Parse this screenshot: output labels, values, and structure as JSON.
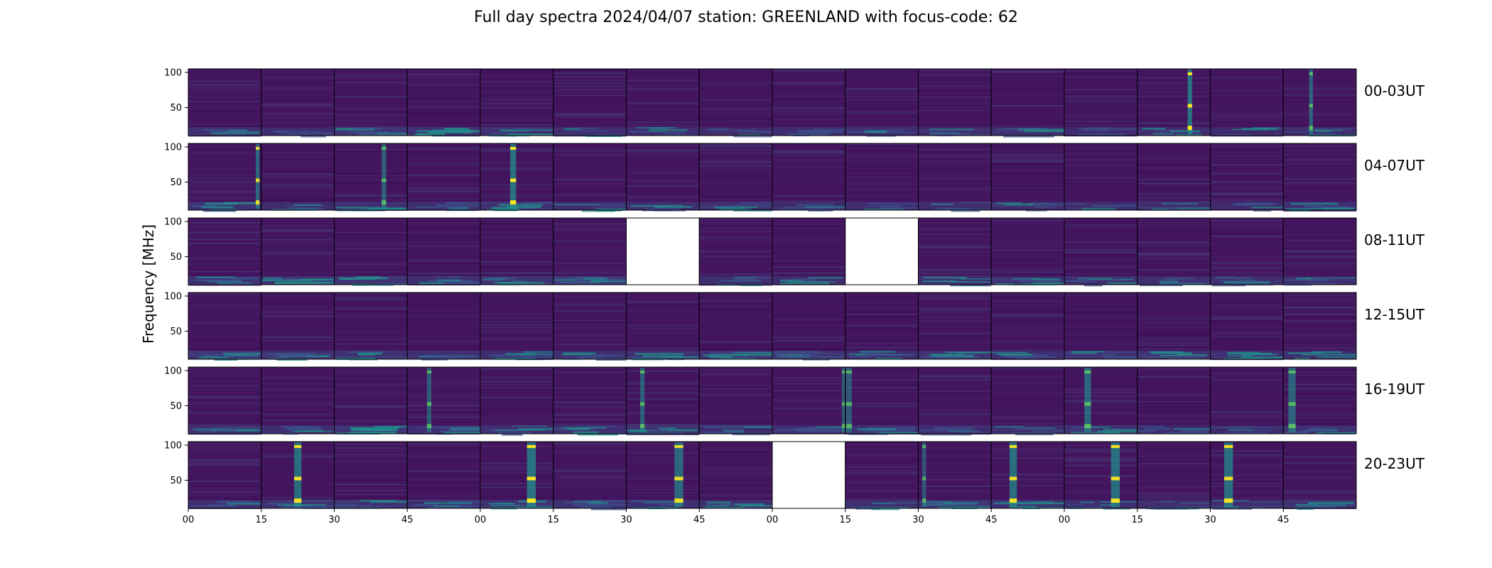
{
  "title": "Full day spectra 2024/04/07 station: GREENLAND with focus-code: 62",
  "colors": {
    "background": "#44155f",
    "low": "#461c64",
    "mid": "#3b528b",
    "teal": "#21918c",
    "green": "#5ec962",
    "yellow": "#fde725"
  },
  "chart_data": {
    "type": "heatmap",
    "title": "Full day spectra 2024/04/07 station: GREENLAND with focus-code: 62",
    "ylabel": "Frequency [MHz]",
    "xlabel": "",
    "ylim": [
      10,
      105
    ],
    "y_ticks": [
      50,
      100
    ],
    "y_tick_labels": [
      "50",
      "100"
    ],
    "x_tick_labels": [
      "00",
      "15",
      "30",
      "45",
      "00",
      "15",
      "30",
      "45",
      "00",
      "15",
      "30",
      "45",
      "00",
      "15",
      "30",
      "45"
    ],
    "panels_per_row": 16,
    "panel_minutes": 15,
    "rows": [
      {
        "label": "00-03UT",
        "missing": [],
        "bursts": [
          {
            "panel": 13,
            "x": 0.72,
            "width": 0.06,
            "strength": 1.0
          },
          {
            "panel": 15,
            "x": 0.38,
            "width": 0.05,
            "strength": 0.7
          }
        ],
        "lowband": [
          0.5,
          0.35,
          0.65,
          0.6,
          0.45,
          0.3,
          0.35,
          0.25,
          0.35,
          0.3,
          0.25,
          0.4,
          0.3,
          0.35,
          0.3,
          0.3
        ]
      },
      {
        "label": "04-07UT",
        "missing": [],
        "bursts": [
          {
            "panel": 0,
            "x": 0.95,
            "width": 0.05,
            "strength": 0.8
          },
          {
            "panel": 2,
            "x": 0.68,
            "width": 0.06,
            "strength": 0.65
          },
          {
            "panel": 4,
            "x": 0.45,
            "width": 0.08,
            "strength": 1.0
          }
        ],
        "lowband": [
          0.55,
          0.35,
          0.5,
          0.4,
          0.5,
          0.35,
          0.35,
          0.4,
          0.3,
          0.35,
          0.3,
          0.3,
          0.25,
          0.3,
          0.25,
          0.45
        ]
      },
      {
        "label": "08-11UT",
        "missing": [
          6,
          9
        ],
        "bursts": [],
        "lowband": [
          0.6,
          0.65,
          0.55,
          0.45,
          0.6,
          0.7,
          0.0,
          0.45,
          0.35,
          0.0,
          0.4,
          0.45,
          0.4,
          0.4,
          0.4,
          0.35
        ]
      },
      {
        "label": "12-15UT",
        "missing": [],
        "bursts": [],
        "lowband": [
          0.7,
          0.55,
          0.5,
          0.45,
          0.5,
          0.4,
          0.45,
          0.5,
          0.55,
          0.45,
          0.5,
          0.45,
          0.45,
          0.55,
          0.5,
          0.45
        ]
      },
      {
        "label": "16-19UT",
        "missing": [],
        "bursts": [
          {
            "panel": 3,
            "x": 0.3,
            "width": 0.06,
            "strength": 0.5
          },
          {
            "panel": 6,
            "x": 0.22,
            "width": 0.06,
            "strength": 0.6
          },
          {
            "panel": 8,
            "x": 0.98,
            "width": 0.05,
            "strength": 0.55
          },
          {
            "panel": 9,
            "x": 0.05,
            "width": 0.08,
            "strength": 0.5
          },
          {
            "panel": 12,
            "x": 0.32,
            "width": 0.09,
            "strength": 0.75
          },
          {
            "panel": 15,
            "x": 0.12,
            "width": 0.1,
            "strength": 0.65
          }
        ],
        "lowband": [
          0.55,
          0.4,
          0.7,
          0.45,
          0.45,
          0.45,
          0.6,
          0.45,
          0.45,
          0.6,
          0.35,
          0.35,
          0.5,
          0.35,
          0.3,
          0.45
        ]
      },
      {
        "label": "20-23UT",
        "missing": [
          8
        ],
        "bursts": [
          {
            "panel": 1,
            "x": 0.5,
            "width": 0.1,
            "strength": 0.9
          },
          {
            "panel": 4,
            "x": 0.7,
            "width": 0.12,
            "strength": 1.0
          },
          {
            "panel": 6,
            "x": 0.72,
            "width": 0.12,
            "strength": 0.8
          },
          {
            "panel": 10,
            "x": 0.08,
            "width": 0.05,
            "strength": 0.5
          },
          {
            "panel": 11,
            "x": 0.3,
            "width": 0.1,
            "strength": 0.9
          },
          {
            "panel": 12,
            "x": 0.7,
            "width": 0.12,
            "strength": 0.9
          },
          {
            "panel": 14,
            "x": 0.25,
            "width": 0.12,
            "strength": 0.9
          }
        ],
        "lowband": [
          0.45,
          0.5,
          0.4,
          0.45,
          0.45,
          0.5,
          0.45,
          0.4,
          0.0,
          0.4,
          0.65,
          0.45,
          0.45,
          0.4,
          0.35,
          0.6
        ]
      }
    ]
  }
}
